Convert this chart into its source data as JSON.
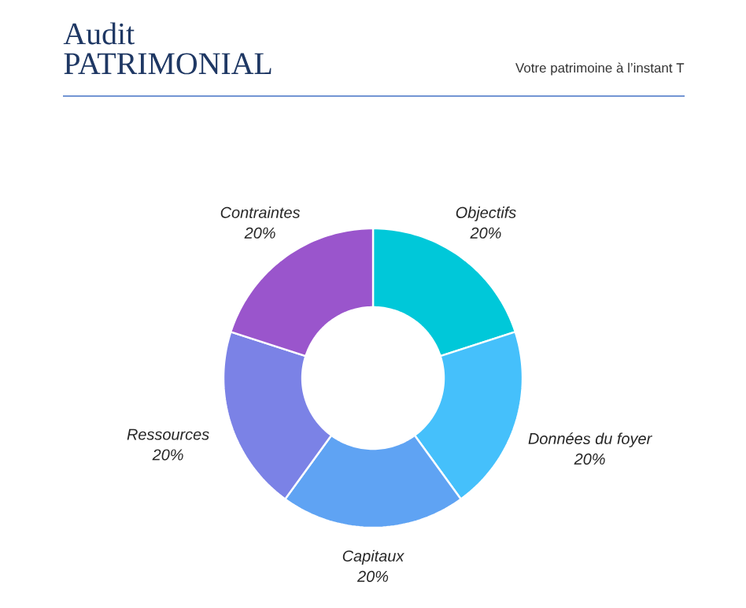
{
  "chart_data": {
    "type": "donut",
    "title": "Audit PATRIMONIAL",
    "subtitle": "Votre patrimoine à l’instant T",
    "categories": [
      "Objectifs",
      "Données du foyer",
      "Capitaux",
      "Ressources",
      "Contraintes"
    ],
    "values": [
      20,
      20,
      20,
      20,
      20
    ],
    "colors": [
      "#00c8d9",
      "#45c0fb",
      "#5fa3f3",
      "#7b82e6",
      "#9a55cc"
    ],
    "value_labels": [
      "20%",
      "20%",
      "20%",
      "20%",
      "20%"
    ]
  }
}
